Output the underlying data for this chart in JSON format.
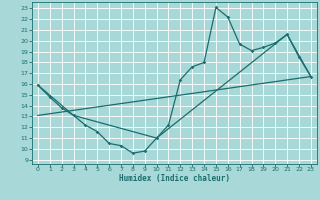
{
  "xlabel": "Humidex (Indice chaleur)",
  "bg_color": "#a8d8d8",
  "grid_color": "#ffffff",
  "line_color": "#1a6e6e",
  "xlim": [
    -0.5,
    23.5
  ],
  "ylim": [
    8.6,
    23.6
  ],
  "xticks": [
    0,
    1,
    2,
    3,
    4,
    5,
    6,
    7,
    8,
    9,
    10,
    11,
    12,
    13,
    14,
    15,
    16,
    17,
    18,
    19,
    20,
    21,
    22,
    23
  ],
  "yticks": [
    9,
    10,
    11,
    12,
    13,
    14,
    15,
    16,
    17,
    18,
    19,
    20,
    21,
    22,
    23
  ],
  "curve_x": [
    0,
    1,
    2,
    3,
    4,
    5,
    6,
    7,
    8,
    9,
    10,
    11,
    12,
    13,
    14,
    15,
    16,
    17,
    18,
    19,
    20,
    21,
    22,
    23
  ],
  "curve_y": [
    15.9,
    14.8,
    13.8,
    13.1,
    12.2,
    11.6,
    10.5,
    10.3,
    9.6,
    9.8,
    11.0,
    12.2,
    16.4,
    17.6,
    18.0,
    23.1,
    22.2,
    19.7,
    19.1,
    19.4,
    19.8,
    20.6,
    18.5,
    16.7
  ],
  "line1_x": [
    0,
    3,
    10,
    21,
    23
  ],
  "line1_y": [
    15.9,
    13.1,
    11.0,
    20.6,
    16.7
  ],
  "line2_x": [
    0,
    23
  ],
  "line2_y": [
    13.1,
    16.7
  ]
}
